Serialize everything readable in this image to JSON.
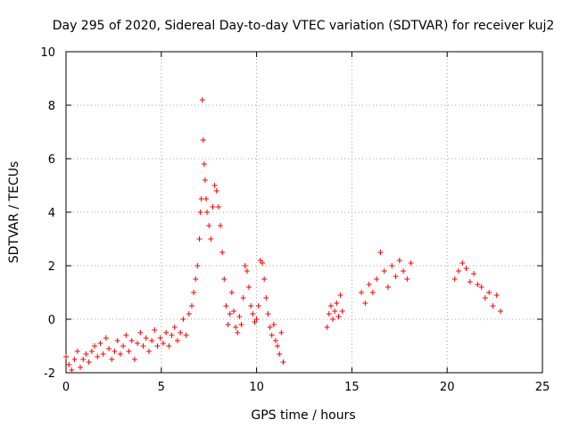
{
  "chart_data": {
    "type": "scatter",
    "title": "Day 295 of 2020, Sidereal Day-to-day VTEC variation (SDTVAR) for receiver kuj2",
    "xlabel": "GPS time / hours",
    "ylabel": "SDTVAR / TECUs",
    "xlim": [
      0,
      25
    ],
    "ylim": [
      -2,
      10
    ],
    "xticks": [
      0,
      5,
      10,
      15,
      20,
      25
    ],
    "yticks": [
      -2,
      0,
      2,
      4,
      6,
      8,
      10
    ],
    "grid": true,
    "marker": "+",
    "series_color": "#ff0000",
    "series": [
      {
        "name": "SDTVAR",
        "x": [
          0.0,
          0.15,
          0.3,
          0.45,
          0.6,
          0.75,
          0.9,
          1.05,
          1.2,
          1.35,
          1.5,
          1.65,
          1.8,
          1.95,
          2.1,
          2.25,
          2.4,
          2.55,
          2.7,
          2.85,
          3.0,
          3.15,
          3.3,
          3.45,
          3.6,
          3.75,
          3.9,
          4.05,
          4.2,
          4.35,
          4.5,
          4.65,
          4.8,
          4.95,
          5.1,
          5.25,
          5.4,
          5.55,
          5.7,
          5.85,
          6.0,
          6.15,
          6.3,
          6.45,
          6.6,
          6.7,
          6.8,
          6.9,
          7.0,
          7.05,
          7.1,
          7.15,
          7.2,
          7.25,
          7.3,
          7.35,
          7.4,
          7.5,
          7.6,
          7.7,
          7.8,
          7.9,
          8.0,
          8.1,
          8.2,
          8.3,
          8.4,
          8.5,
          8.6,
          8.7,
          8.8,
          8.9,
          9.0,
          9.1,
          9.2,
          9.3,
          9.4,
          9.5,
          9.6,
          9.7,
          9.8,
          9.9,
          10.0,
          10.1,
          10.2,
          10.3,
          10.4,
          10.5,
          10.6,
          10.7,
          10.8,
          10.9,
          11.0,
          11.1,
          11.2,
          11.3,
          11.4,
          13.7,
          13.8,
          13.9,
          14.0,
          14.1,
          14.2,
          14.3,
          14.4,
          14.5,
          15.5,
          15.7,
          15.9,
          16.1,
          16.3,
          16.5,
          16.7,
          16.9,
          17.1,
          17.3,
          17.5,
          17.7,
          17.9,
          18.1,
          20.4,
          20.6,
          20.8,
          21.0,
          21.2,
          21.4,
          21.6,
          21.8,
          22.0,
          22.2,
          22.4,
          22.6,
          22.8
        ],
        "y": [
          -1.4,
          -1.7,
          -1.9,
          -1.5,
          -1.2,
          -1.8,
          -1.5,
          -1.3,
          -1.6,
          -1.2,
          -1.0,
          -1.4,
          -0.9,
          -1.3,
          -0.7,
          -1.1,
          -1.5,
          -1.2,
          -0.8,
          -1.3,
          -1.0,
          -0.6,
          -1.2,
          -0.8,
          -1.5,
          -0.9,
          -0.5,
          -1.0,
          -0.7,
          -1.2,
          -0.8,
          -0.4,
          -1.0,
          -0.7,
          -0.9,
          -0.5,
          -1.0,
          -0.6,
          -0.3,
          -0.8,
          -0.5,
          0.0,
          -0.6,
          0.2,
          0.5,
          1.0,
          1.5,
          2.0,
          3.0,
          4.0,
          4.5,
          8.2,
          6.7,
          5.8,
          5.2,
          4.5,
          4.0,
          3.5,
          3.0,
          4.2,
          5.0,
          4.8,
          4.2,
          3.5,
          2.5,
          1.5,
          0.5,
          -0.2,
          0.2,
          1.0,
          0.3,
          -0.3,
          -0.5,
          0.1,
          -0.2,
          0.8,
          2.0,
          1.8,
          1.2,
          0.5,
          0.2,
          -0.1,
          0.0,
          0.5,
          2.2,
          2.1,
          1.5,
          0.8,
          0.2,
          -0.3,
          -0.6,
          -0.2,
          -0.8,
          -1.0,
          -1.3,
          -0.5,
          -1.6,
          -0.3,
          0.2,
          0.5,
          0.0,
          0.3,
          0.6,
          0.1,
          0.9,
          0.3,
          1.0,
          0.6,
          1.3,
          1.0,
          1.5,
          2.5,
          1.8,
          1.2,
          2.0,
          1.6,
          2.2,
          1.8,
          1.5,
          2.1,
          1.5,
          1.8,
          2.1,
          1.9,
          1.4,
          1.7,
          1.3,
          1.2,
          0.8,
          1.0,
          0.5,
          0.9,
          0.3
        ]
      }
    ]
  }
}
